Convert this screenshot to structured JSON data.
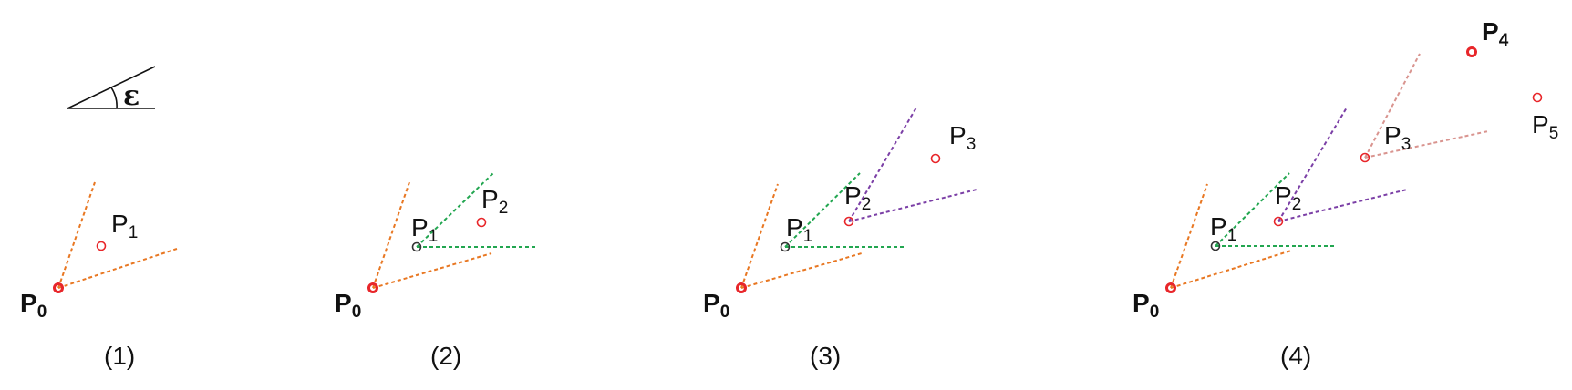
{
  "legend": {
    "symbol": "ε"
  },
  "colors": {
    "p0_cone": "#e87722",
    "p1_cone": "#22a650",
    "p2_cone": "#7b3fa6",
    "p3_cone": "#d9948f",
    "point": "#e8262a",
    "text": "#111111"
  },
  "panels": [
    {
      "caption": "(1)",
      "points": [
        {
          "base": "P",
          "sub": "0",
          "bold": true
        },
        {
          "base": "P",
          "sub": "1",
          "bold": false
        }
      ]
    },
    {
      "caption": "(2)",
      "points": [
        {
          "base": "P",
          "sub": "0",
          "bold": true
        },
        {
          "base": "P",
          "sub": "1",
          "bold": false
        },
        {
          "base": "P",
          "sub": "2",
          "bold": false
        }
      ]
    },
    {
      "caption": "(3)",
      "points": [
        {
          "base": "P",
          "sub": "0",
          "bold": true
        },
        {
          "base": "P",
          "sub": "1",
          "bold": false
        },
        {
          "base": "P",
          "sub": "2",
          "bold": false
        },
        {
          "base": "P",
          "sub": "3",
          "bold": false
        }
      ]
    },
    {
      "caption": "(4)",
      "points": [
        {
          "base": "P",
          "sub": "0",
          "bold": true
        },
        {
          "base": "P",
          "sub": "1",
          "bold": false
        },
        {
          "base": "P",
          "sub": "2",
          "bold": false
        },
        {
          "base": "P",
          "sub": "3",
          "bold": false
        },
        {
          "base": "P",
          "sub": "4",
          "bold": true
        },
        {
          "base": "P",
          "sub": "5",
          "bold": false
        }
      ]
    }
  ]
}
